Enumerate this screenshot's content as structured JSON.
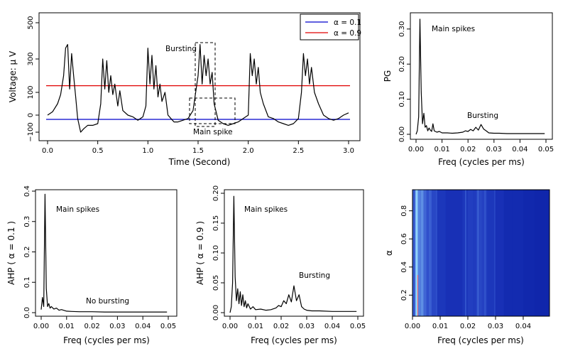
{
  "chart_data": [
    {
      "id": "voltage",
      "type": "line",
      "xlabel": "Time (Second)",
      "ylabel": "Voltage: μ V",
      "xlim": [
        0,
        3
      ],
      "ylim": [
        -100,
        500
      ],
      "xticks": [
        "0.0",
        "0.5",
        "1.0",
        "1.5",
        "2.0",
        "2.5",
        "3.0"
      ],
      "yticks": [
        "−100",
        "0",
        "100",
        "300",
        "500"
      ],
      "legend": {
        "position": "top-right",
        "entries": [
          {
            "label": "α = 0.1",
            "color": "#0000cc"
          },
          {
            "label": "α = 0.9",
            "color": "#e00000"
          }
        ]
      },
      "hlines": [
        {
          "name": "α = 0.1",
          "y": -25,
          "color": "#0000cc"
        },
        {
          "name": "α = 0.9",
          "y": 140,
          "color": "#e00000"
        }
      ],
      "annotations": [
        "Bursting",
        "Main spike"
      ],
      "series": [
        {
          "color": "#000000",
          "x": [
            0.0,
            0.05,
            0.1,
            0.13,
            0.16,
            0.18,
            0.2,
            0.22,
            0.24,
            0.26,
            0.28,
            0.3,
            0.33,
            0.36,
            0.4,
            0.45,
            0.5,
            0.53,
            0.55,
            0.57,
            0.59,
            0.61,
            0.63,
            0.65,
            0.67,
            0.7,
            0.72,
            0.75,
            0.8,
            0.85,
            0.9,
            0.95,
            0.98,
            1.0,
            1.02,
            1.04,
            1.06,
            1.08,
            1.1,
            1.12,
            1.14,
            1.17,
            1.2,
            1.23,
            1.26,
            1.3,
            1.35,
            1.4,
            1.45,
            1.5,
            1.52,
            1.54,
            1.56,
            1.58,
            1.6,
            1.62,
            1.64,
            1.66,
            1.7,
            1.75,
            1.8,
            1.85,
            1.9,
            1.95,
            2.0,
            2.02,
            2.04,
            2.06,
            2.08,
            2.1,
            2.12,
            2.15,
            2.2,
            2.25,
            2.3,
            2.35,
            2.4,
            2.45,
            2.5,
            2.53,
            2.55,
            2.57,
            2.59,
            2.61,
            2.63,
            2.66,
            2.7,
            2.75,
            2.8,
            2.85,
            2.9,
            2.95,
            3.0
          ],
          "y": [
            0,
            15,
            50,
            90,
            200,
            360,
            380,
            120,
            330,
            200,
            80,
            -20,
            -100,
            -80,
            -60,
            -60,
            -50,
            50,
            300,
            120,
            290,
            100,
            200,
            90,
            150,
            40,
            110,
            20,
            0,
            -10,
            -30,
            -10,
            40,
            360,
            150,
            320,
            120,
            260,
            80,
            150,
            60,
            100,
            0,
            -20,
            -40,
            -40,
            -30,
            -20,
            20,
            200,
            380,
            150,
            320,
            200,
            300,
            150,
            220,
            50,
            -30,
            -50,
            -60,
            -50,
            -40,
            -20,
            0,
            330,
            200,
            300,
            150,
            250,
            100,
            50,
            -10,
            -20,
            -40,
            -50,
            -60,
            -50,
            -20,
            100,
            330,
            200,
            300,
            150,
            250,
            100,
            50,
            0,
            -20,
            -30,
            -20,
            0,
            10
          ]
        }
      ]
    },
    {
      "id": "pg",
      "type": "line",
      "xlabel": "Freq (cycles per ms)",
      "ylabel": "PG",
      "xlim": [
        0,
        0.05
      ],
      "ylim": [
        0,
        0.33
      ],
      "xticks": [
        "0.00",
        "0.01",
        "0.02",
        "0.03",
        "0.04",
        "0.05"
      ],
      "yticks": [
        "0.00",
        "0.10",
        "0.20",
        "0.30"
      ],
      "annotations": [
        "Main spikes",
        "Bursting"
      ],
      "series": [
        {
          "color": "#000000",
          "x": [
            0.0,
            0.0005,
            0.001,
            0.0015,
            0.002,
            0.0025,
            0.003,
            0.0035,
            0.004,
            0.0045,
            0.005,
            0.0055,
            0.006,
            0.0065,
            0.007,
            0.008,
            0.009,
            0.01,
            0.012,
            0.014,
            0.016,
            0.018,
            0.019,
            0.02,
            0.021,
            0.022,
            0.023,
            0.024,
            0.025,
            0.026,
            0.027,
            0.028,
            0.03,
            0.032,
            0.035,
            0.04,
            0.045,
            0.0495
          ],
          "y": [
            0.0,
            0.01,
            0.05,
            0.328,
            0.12,
            0.03,
            0.06,
            0.02,
            0.025,
            0.01,
            0.018,
            0.012,
            0.008,
            0.03,
            0.01,
            0.006,
            0.008,
            0.004,
            0.004,
            0.003,
            0.004,
            0.006,
            0.01,
            0.008,
            0.014,
            0.01,
            0.02,
            0.012,
            0.028,
            0.015,
            0.01,
            0.004,
            0.003,
            0.003,
            0.002,
            0.002,
            0.002,
            0.002
          ]
        }
      ]
    },
    {
      "id": "ahp01",
      "type": "line",
      "xlabel": "Freq (cycles per ms)",
      "ylabel": "AHP ( α = 0.1 )",
      "xlim": [
        0,
        0.05
      ],
      "ylim": [
        0,
        0.4
      ],
      "xticks": [
        "0.00",
        "0.01",
        "0.02",
        "0.03",
        "0.04",
        "0.05"
      ],
      "yticks": [
        "0.0",
        "0.1",
        "0.2",
        "0.3",
        "0.4"
      ],
      "annotations": [
        "Main spikes",
        "No bursting"
      ],
      "series": [
        {
          "color": "#000000",
          "x": [
            0.0,
            0.0005,
            0.001,
            0.0015,
            0.002,
            0.0025,
            0.003,
            0.0035,
            0.004,
            0.005,
            0.006,
            0.007,
            0.008,
            0.01,
            0.012,
            0.015,
            0.02,
            0.025,
            0.03,
            0.035,
            0.04,
            0.045,
            0.0495
          ],
          "y": [
            0.01,
            0.05,
            0.02,
            0.39,
            0.08,
            0.02,
            0.03,
            0.015,
            0.02,
            0.012,
            0.015,
            0.008,
            0.01,
            0.005,
            0.004,
            0.003,
            0.003,
            0.002,
            0.002,
            0.002,
            0.002,
            0.002,
            0.002
          ]
        }
      ]
    },
    {
      "id": "ahp09",
      "type": "line",
      "xlabel": "Freq (cycles per ms)",
      "ylabel": "AHP ( α = 0.9 )",
      "xlim": [
        0,
        0.05
      ],
      "ylim": [
        0,
        0.2
      ],
      "xticks": [
        "0.00",
        "0.01",
        "0.02",
        "0.03",
        "0.04",
        "0.05"
      ],
      "yticks": [
        "0.00",
        "0.05",
        "0.10",
        "0.15",
        "0.20"
      ],
      "annotations": [
        "Main spikes",
        "Bursting"
      ],
      "series": [
        {
          "color": "#000000",
          "x": [
            0.0,
            0.0005,
            0.001,
            0.0015,
            0.002,
            0.0025,
            0.003,
            0.0035,
            0.004,
            0.0045,
            0.005,
            0.0055,
            0.006,
            0.0065,
            0.007,
            0.008,
            0.009,
            0.01,
            0.012,
            0.014,
            0.016,
            0.018,
            0.019,
            0.02,
            0.021,
            0.022,
            0.023,
            0.024,
            0.025,
            0.026,
            0.027,
            0.028,
            0.029,
            0.03,
            0.032,
            0.035,
            0.04,
            0.045,
            0.0495
          ],
          "y": [
            0.0,
            0.01,
            0.05,
            0.195,
            0.06,
            0.02,
            0.04,
            0.015,
            0.035,
            0.012,
            0.03,
            0.01,
            0.02,
            0.008,
            0.015,
            0.006,
            0.01,
            0.005,
            0.006,
            0.004,
            0.005,
            0.008,
            0.012,
            0.01,
            0.02,
            0.015,
            0.03,
            0.018,
            0.045,
            0.02,
            0.03,
            0.01,
            0.006,
            0.004,
            0.003,
            0.003,
            0.002,
            0.002,
            0.002
          ]
        }
      ]
    },
    {
      "id": "heatmap",
      "type": "heatmap",
      "xlabel": "Freq (cycles per ms)",
      "ylabel": "α",
      "xlim": [
        0,
        0.0495
      ],
      "ylim": [
        0.05,
        0.95
      ],
      "xticks": [
        "0.00",
        "0.01",
        "0.02",
        "0.03",
        "0.04"
      ],
      "yticks": [
        "0.2",
        "0.4",
        "0.6",
        "0.8"
      ],
      "columns_freq": [
        0.0,
        0.001,
        0.0015,
        0.002,
        0.003,
        0.004,
        0.005,
        0.006,
        0.007,
        0.009,
        0.012,
        0.015,
        0.018,
        0.02,
        0.022,
        0.023,
        0.025,
        0.027,
        0.03,
        0.033,
        0.036,
        0.04,
        0.044,
        0.048
      ],
      "columns_intensity": [
        0.55,
        0.85,
        0.95,
        0.7,
        0.75,
        0.6,
        0.5,
        0.55,
        0.45,
        0.35,
        0.3,
        0.3,
        0.35,
        0.4,
        0.38,
        0.45,
        0.42,
        0.35,
        0.3,
        0.25,
        0.25,
        0.22,
        0.2,
        0.2
      ]
    }
  ]
}
